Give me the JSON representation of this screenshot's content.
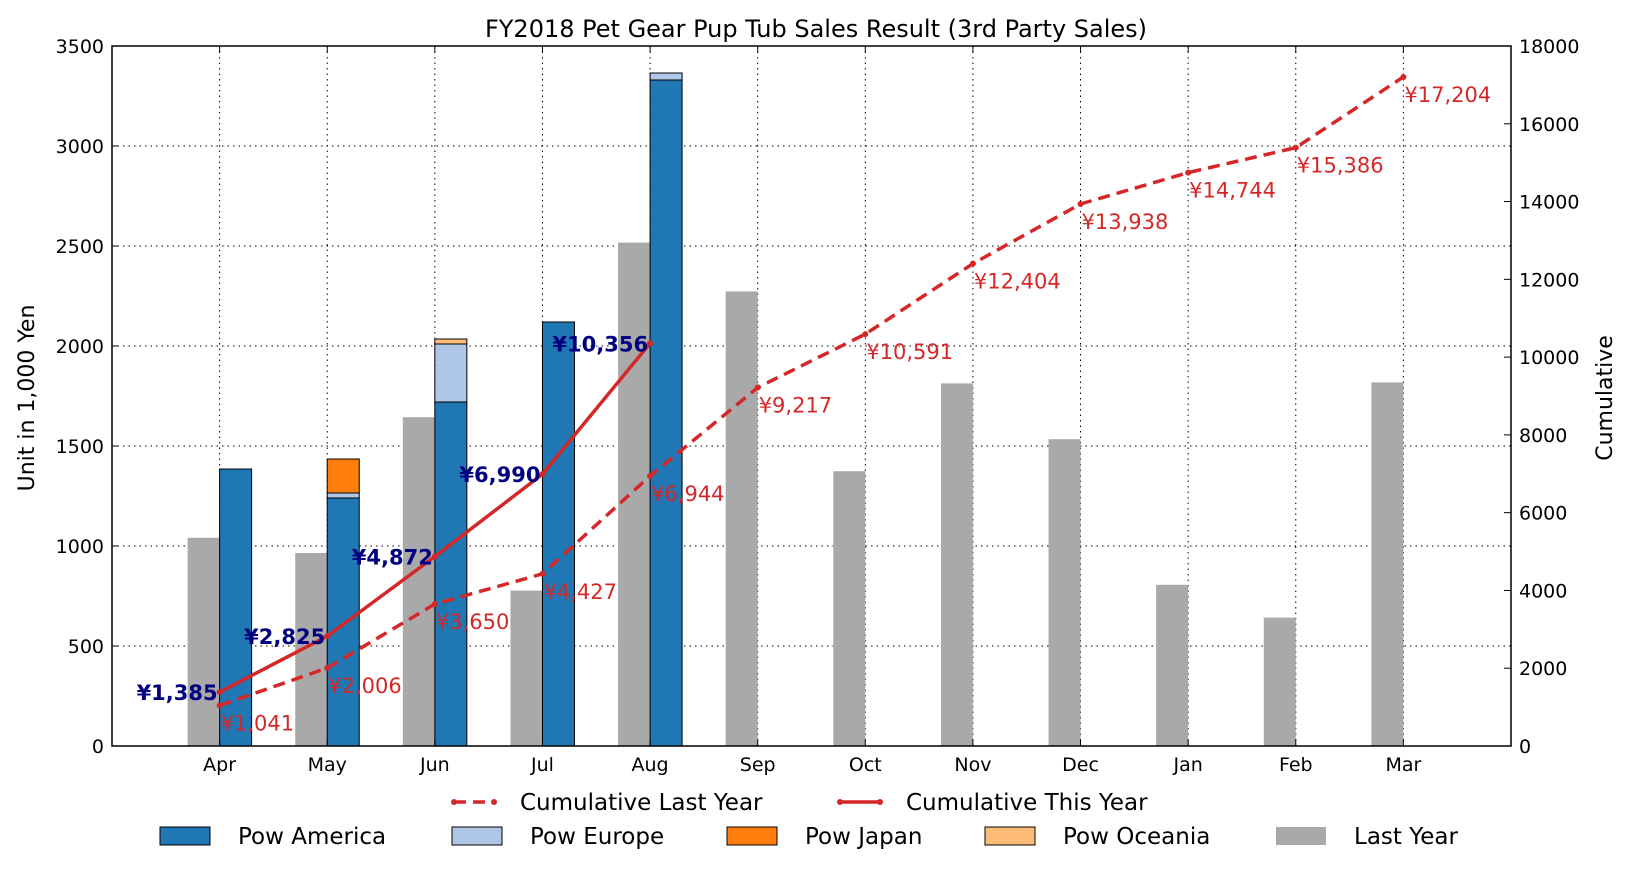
{
  "chart_data": {
    "type": "bar",
    "title": "FY2018 Pet Gear Pup Tub Sales Result (3rd Party Sales)",
    "ylabel": "Unit in 1,000 Yen",
    "y2label": "Cumulative",
    "ylim": [
      0,
      3500
    ],
    "y2lim": [
      0,
      18000
    ],
    "yticks": [
      "0",
      "500",
      "1000",
      "1500",
      "2000",
      "2500",
      "3000",
      "3500"
    ],
    "y2ticks": [
      "0",
      "2000",
      "4000",
      "6000",
      "8000",
      "10000",
      "12000",
      "14000",
      "16000",
      "18000"
    ],
    "grid": true,
    "categories": [
      "Apr",
      "May",
      "Jun",
      "Jul",
      "Aug",
      "Sep",
      "Oct",
      "Nov",
      "Dec",
      "Jan",
      "Feb",
      "Mar"
    ],
    "last_year": {
      "name": "Last Year",
      "color": "#a9a9a9",
      "values": [
        1041,
        965,
        1644,
        777,
        2517,
        2273,
        1374,
        1813,
        1534,
        806,
        642,
        1818
      ]
    },
    "stacked_series": [
      {
        "name": "Pow America",
        "color": "#1f77b4",
        "values": [
          1385,
          1240,
          1720,
          2120,
          3330,
          null,
          null,
          null,
          null,
          null,
          null,
          null
        ]
      },
      {
        "name": "Pow Europe",
        "color": "#aec7e8",
        "values": [
          0,
          25,
          290,
          0,
          35,
          null,
          null,
          null,
          null,
          null,
          null,
          null
        ]
      },
      {
        "name": "Pow Japan",
        "color": "#ff7f0e",
        "values": [
          0,
          170,
          0,
          0,
          0,
          null,
          null,
          null,
          null,
          null,
          null,
          null
        ]
      },
      {
        "name": "Pow Oceania",
        "color": "#ffbb78",
        "values": [
          0,
          0,
          25,
          0,
          0,
          null,
          null,
          null,
          null,
          null,
          null,
          null
        ]
      }
    ],
    "cumulative_last_year": {
      "name": "Cumulative Last Year",
      "color": "#d62728",
      "values": [
        1041,
        2006,
        3650,
        4427,
        6944,
        9217,
        10591,
        12404,
        13938,
        14744,
        15386,
        17204
      ],
      "labels": [
        "¥1,041",
        "¥2,006",
        "¥3,650",
        "¥4,427",
        "¥6,944",
        "¥9,217",
        "¥10,591",
        "¥12,404",
        "¥13,938",
        "¥14,744",
        "¥15,386",
        "¥17,204"
      ]
    },
    "cumulative_this_year": {
      "name": "Cumulative This Year",
      "color": "#d62728",
      "values": [
        1385,
        2825,
        4872,
        6990,
        10356
      ],
      "labels": [
        "¥1,385",
        "¥2,825",
        "¥4,872",
        "¥6,990",
        "¥10,356"
      ],
      "label_color": "#000080"
    },
    "legend_position": "bottom"
  }
}
